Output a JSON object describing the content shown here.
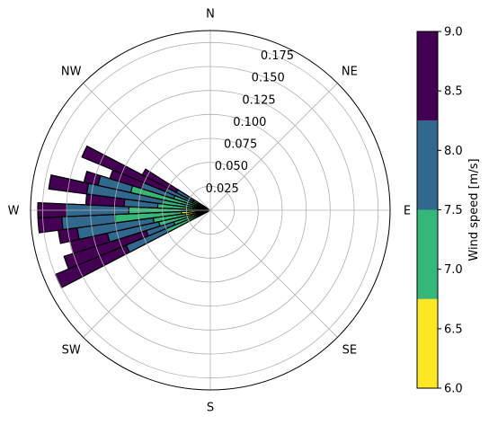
{
  "chart_data": {
    "type": "windrose",
    "title": "",
    "radial_ticks": [
      "0.025",
      "0.050",
      "0.075",
      "0.100",
      "0.125",
      "0.150",
      "0.175"
    ],
    "radial_tick_values": [
      0.025,
      0.05,
      0.075,
      0.1,
      0.125,
      0.15,
      0.175
    ],
    "rmax": 0.1875,
    "directions": [
      {
        "label": "N",
        "deg": 0
      },
      {
        "label": "NE",
        "deg": 45
      },
      {
        "label": "E",
        "deg": 90
      },
      {
        "label": "SE",
        "deg": 135
      },
      {
        "label": "S",
        "deg": 180
      },
      {
        "label": "SW",
        "deg": 225
      },
      {
        "label": "W",
        "deg": 270
      },
      {
        "label": "NW",
        "deg": 315
      }
    ],
    "sector_width_deg": 5,
    "colorbar": {
      "label": "Wind speed [m/s]",
      "ticks": [
        "6.0",
        "6.5",
        "7.0",
        "7.5",
        "8.0",
        "8.5",
        "9.0"
      ],
      "tick_values": [
        6.0,
        6.5,
        7.0,
        7.5,
        8.0,
        8.5,
        9.0
      ],
      "range": [
        6.0,
        9.0
      ],
      "bins": [
        {
          "from": 6.0,
          "to": 6.75,
          "color": "#fde725"
        },
        {
          "from": 6.75,
          "to": 7.5,
          "color": "#35b779"
        },
        {
          "from": 7.5,
          "to": 8.25,
          "color": "#31688e"
        },
        {
          "from": 8.25,
          "to": 9.0,
          "color": "#440154"
        }
      ]
    },
    "sectors": [
      {
        "dir_deg": 245,
        "cumulative": [
          0.015,
          0.05,
          0.095,
          0.175
        ]
      },
      {
        "dir_deg": 250,
        "cumulative": [
          0.012,
          0.04,
          0.07,
          0.16
        ]
      },
      {
        "dir_deg": 255,
        "cumulative": [
          0.02,
          0.055,
          0.11,
          0.15
        ]
      },
      {
        "dir_deg": 260,
        "cumulative": [
          0.025,
          0.06,
          0.14,
          0.16
        ]
      },
      {
        "dir_deg": 265,
        "cumulative": [
          0.03,
          0.1,
          0.155,
          0.18
        ]
      },
      {
        "dir_deg": 270,
        "cumulative": [
          0.02,
          0.085,
          0.15,
          0.18
        ]
      },
      {
        "dir_deg": 275,
        "cumulative": [
          0.018,
          0.055,
          0.09,
          0.13
        ]
      },
      {
        "dir_deg": 280,
        "cumulative": [
          0.015,
          0.05,
          0.13,
          0.17
        ]
      },
      {
        "dir_deg": 285,
        "cumulative": [
          0.012,
          0.085,
          0.12,
          0.135
        ]
      },
      {
        "dir_deg": 290,
        "cumulative": [
          0.01,
          0.04,
          0.075,
          0.11
        ]
      },
      {
        "dir_deg": 295,
        "cumulative": [
          0.008,
          0.02,
          0.05,
          0.145
        ]
      },
      {
        "dir_deg": 300,
        "cumulative": [
          0.006,
          0.02,
          0.04,
          0.08
        ]
      }
    ]
  }
}
